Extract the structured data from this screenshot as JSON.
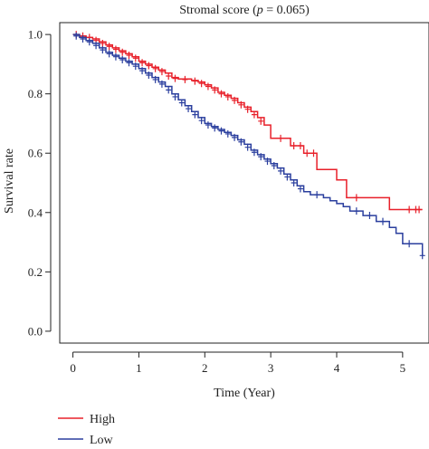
{
  "chart_data": {
    "type": "line",
    "title": "Stromal score (",
    "title_p": "p",
    "title_suffix": " = 0.065)",
    "xlabel": "Time (Year)",
    "ylabel": "Survival rate",
    "xlim": [
      -0.2,
      5.4
    ],
    "ylim": [
      -0.04,
      1.04
    ],
    "x_ticks": [
      0,
      1,
      2,
      3,
      4,
      5
    ],
    "x_tick_labels": [
      "0",
      "1",
      "2",
      "3",
      "4",
      "5"
    ],
    "y_ticks": [
      0.0,
      0.2,
      0.4,
      0.6,
      0.8,
      1.0
    ],
    "y_tick_labels": [
      "0.0",
      "0.2",
      "0.4",
      "0.6",
      "0.8",
      "1.0"
    ],
    "grid": false,
    "legend_position": "bottom-left",
    "series": [
      {
        "name": "High",
        "color": "#e8202a",
        "step": [
          [
            0,
            1.0
          ],
          [
            0.1,
            0.995
          ],
          [
            0.2,
            0.99
          ],
          [
            0.3,
            0.985
          ],
          [
            0.4,
            0.975
          ],
          [
            0.5,
            0.965
          ],
          [
            0.6,
            0.955
          ],
          [
            0.7,
            0.945
          ],
          [
            0.8,
            0.935
          ],
          [
            0.9,
            0.925
          ],
          [
            1.0,
            0.91
          ],
          [
            1.1,
            0.9
          ],
          [
            1.2,
            0.89
          ],
          [
            1.3,
            0.88
          ],
          [
            1.4,
            0.87
          ],
          [
            1.5,
            0.855
          ],
          [
            1.6,
            0.85
          ],
          [
            1.8,
            0.845
          ],
          [
            1.9,
            0.84
          ],
          [
            2.0,
            0.83
          ],
          [
            2.1,
            0.82
          ],
          [
            2.2,
            0.805
          ],
          [
            2.3,
            0.795
          ],
          [
            2.4,
            0.785
          ],
          [
            2.5,
            0.77
          ],
          [
            2.6,
            0.755
          ],
          [
            2.7,
            0.74
          ],
          [
            2.8,
            0.72
          ],
          [
            2.9,
            0.695
          ],
          [
            3.0,
            0.65
          ],
          [
            3.3,
            0.625
          ],
          [
            3.5,
            0.6
          ],
          [
            3.7,
            0.545
          ],
          [
            3.85,
            0.545
          ],
          [
            4.0,
            0.51
          ],
          [
            4.15,
            0.45
          ],
          [
            4.5,
            0.45
          ],
          [
            4.8,
            0.41
          ],
          [
            5.0,
            0.41
          ],
          [
            5.3,
            0.41
          ]
        ],
        "censors": [
          [
            0.05,
            1.0
          ],
          [
            0.15,
            0.995
          ],
          [
            0.25,
            0.99
          ],
          [
            0.35,
            0.98
          ],
          [
            0.45,
            0.97
          ],
          [
            0.55,
            0.96
          ],
          [
            0.65,
            0.95
          ],
          [
            0.75,
            0.94
          ],
          [
            0.85,
            0.93
          ],
          [
            0.95,
            0.92
          ],
          [
            1.05,
            0.905
          ],
          [
            1.15,
            0.895
          ],
          [
            1.25,
            0.885
          ],
          [
            1.35,
            0.875
          ],
          [
            1.45,
            0.86
          ],
          [
            1.55,
            0.852
          ],
          [
            1.7,
            0.848
          ],
          [
            1.85,
            0.843
          ],
          [
            1.95,
            0.835
          ],
          [
            2.05,
            0.825
          ],
          [
            2.15,
            0.813
          ],
          [
            2.25,
            0.8
          ],
          [
            2.35,
            0.79
          ],
          [
            2.45,
            0.778
          ],
          [
            2.55,
            0.763
          ],
          [
            2.65,
            0.748
          ],
          [
            2.75,
            0.73
          ],
          [
            2.85,
            0.708
          ],
          [
            3.15,
            0.65
          ],
          [
            3.35,
            0.625
          ],
          [
            3.45,
            0.625
          ],
          [
            3.55,
            0.6
          ],
          [
            3.65,
            0.6
          ],
          [
            4.3,
            0.45
          ],
          [
            5.1,
            0.41
          ],
          [
            5.2,
            0.41
          ],
          [
            5.25,
            0.41
          ]
        ]
      },
      {
        "name": "Low",
        "color": "#2b3f9e",
        "step": [
          [
            0,
            1.0
          ],
          [
            0.1,
            0.99
          ],
          [
            0.2,
            0.98
          ],
          [
            0.3,
            0.97
          ],
          [
            0.4,
            0.955
          ],
          [
            0.5,
            0.94
          ],
          [
            0.6,
            0.93
          ],
          [
            0.7,
            0.92
          ],
          [
            0.8,
            0.91
          ],
          [
            0.9,
            0.9
          ],
          [
            1.0,
            0.885
          ],
          [
            1.1,
            0.87
          ],
          [
            1.2,
            0.855
          ],
          [
            1.3,
            0.84
          ],
          [
            1.4,
            0.825
          ],
          [
            1.5,
            0.8
          ],
          [
            1.6,
            0.78
          ],
          [
            1.7,
            0.76
          ],
          [
            1.8,
            0.74
          ],
          [
            1.9,
            0.72
          ],
          [
            2.0,
            0.7
          ],
          [
            2.1,
            0.69
          ],
          [
            2.2,
            0.68
          ],
          [
            2.3,
            0.67
          ],
          [
            2.4,
            0.66
          ],
          [
            2.5,
            0.645
          ],
          [
            2.6,
            0.63
          ],
          [
            2.7,
            0.61
          ],
          [
            2.8,
            0.595
          ],
          [
            2.9,
            0.58
          ],
          [
            3.0,
            0.565
          ],
          [
            3.1,
            0.55
          ],
          [
            3.2,
            0.53
          ],
          [
            3.3,
            0.51
          ],
          [
            3.4,
            0.49
          ],
          [
            3.5,
            0.47
          ],
          [
            3.6,
            0.46
          ],
          [
            3.8,
            0.45
          ],
          [
            3.9,
            0.44
          ],
          [
            4.0,
            0.43
          ],
          [
            4.1,
            0.42
          ],
          [
            4.2,
            0.405
          ],
          [
            4.4,
            0.39
          ],
          [
            4.6,
            0.37
          ],
          [
            4.8,
            0.35
          ],
          [
            4.9,
            0.33
          ],
          [
            5.0,
            0.295
          ],
          [
            5.2,
            0.295
          ],
          [
            5.3,
            0.255
          ]
        ],
        "censors": [
          [
            0.05,
            0.995
          ],
          [
            0.15,
            0.985
          ],
          [
            0.25,
            0.975
          ],
          [
            0.35,
            0.963
          ],
          [
            0.45,
            0.948
          ],
          [
            0.55,
            0.935
          ],
          [
            0.65,
            0.925
          ],
          [
            0.75,
            0.915
          ],
          [
            0.85,
            0.905
          ],
          [
            0.95,
            0.893
          ],
          [
            1.05,
            0.878
          ],
          [
            1.15,
            0.863
          ],
          [
            1.25,
            0.848
          ],
          [
            1.35,
            0.833
          ],
          [
            1.45,
            0.813
          ],
          [
            1.55,
            0.79
          ],
          [
            1.65,
            0.77
          ],
          [
            1.75,
            0.75
          ],
          [
            1.85,
            0.73
          ],
          [
            1.95,
            0.71
          ],
          [
            2.05,
            0.695
          ],
          [
            2.15,
            0.685
          ],
          [
            2.25,
            0.675
          ],
          [
            2.35,
            0.665
          ],
          [
            2.45,
            0.653
          ],
          [
            2.55,
            0.638
          ],
          [
            2.65,
            0.62
          ],
          [
            2.75,
            0.603
          ],
          [
            2.85,
            0.588
          ],
          [
            2.95,
            0.573
          ],
          [
            3.05,
            0.558
          ],
          [
            3.15,
            0.54
          ],
          [
            3.25,
            0.52
          ],
          [
            3.35,
            0.5
          ],
          [
            3.45,
            0.48
          ],
          [
            3.7,
            0.46
          ],
          [
            4.3,
            0.405
          ],
          [
            4.5,
            0.39
          ],
          [
            4.7,
            0.37
          ],
          [
            5.1,
            0.295
          ],
          [
            5.3,
            0.255
          ]
        ]
      }
    ]
  }
}
